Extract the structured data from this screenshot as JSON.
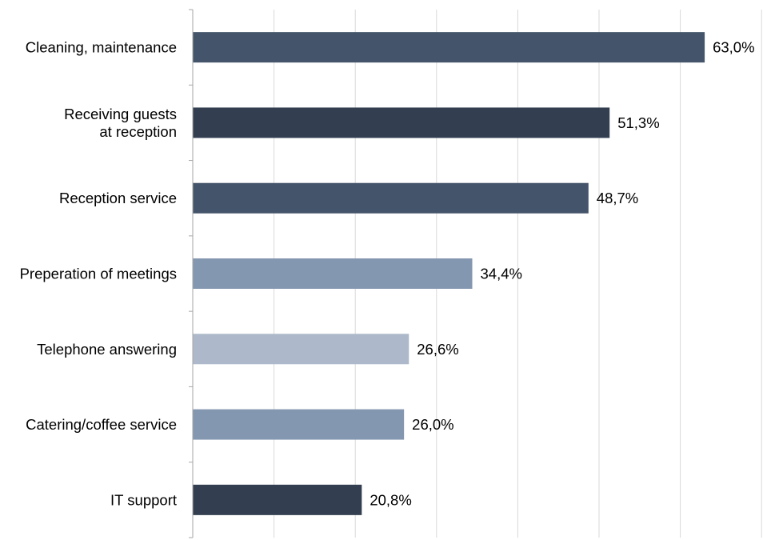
{
  "chart_data": {
    "type": "bar",
    "orientation": "horizontal",
    "categories": [
      [
        "Cleaning, maintenance"
      ],
      [
        "Receiving guests",
        "at reception"
      ],
      [
        "Reception service"
      ],
      [
        "Preperation of meetings"
      ],
      [
        "Telephone answering"
      ],
      [
        "Catering/coffee service"
      ],
      [
        "IT support"
      ]
    ],
    "values": [
      63.0,
      51.3,
      48.7,
      34.4,
      26.6,
      26.0,
      20.8
    ],
    "value_labels": [
      "63,0%",
      "51,3%",
      "48,7%",
      "34,4%",
      "26,6%",
      "26,0%",
      "20,8%"
    ],
    "bar_colors": [
      "#44546a",
      "#333f50",
      "#44546a",
      "#8497b0",
      "#adb9ca",
      "#8497b0",
      "#333f50"
    ],
    "xlim": [
      0,
      70
    ],
    "grid": true,
    "legend": "none"
  }
}
